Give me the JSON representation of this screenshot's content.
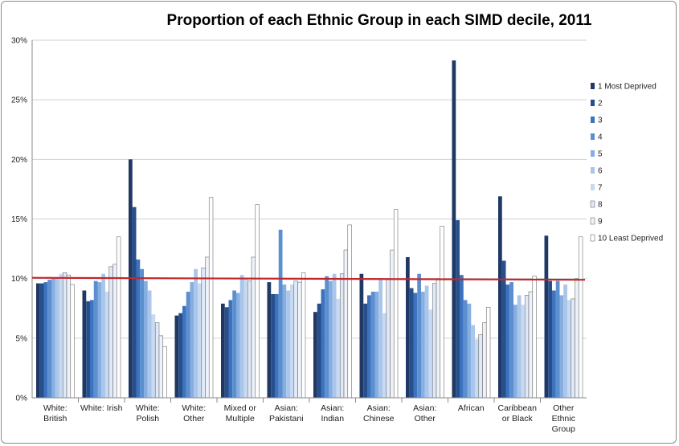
{
  "chart_data": {
    "type": "bar",
    "title": "Proportion of each Ethnic Group in each SIMD decile, 2011",
    "xlabel": "",
    "ylabel": "",
    "ylim": [
      0,
      30
    ],
    "yticks": [
      "0%",
      "5%",
      "10%",
      "15%",
      "20%",
      "25%",
      "30%"
    ],
    "grid": true,
    "legend_position": "right",
    "reference_line": {
      "value": 10,
      "color": "#c0272d"
    },
    "categories": [
      [
        "White:",
        "British"
      ],
      [
        "White: Irish"
      ],
      [
        "White:",
        "Polish"
      ],
      [
        "White:",
        "Other"
      ],
      [
        "Mixed or",
        "Multiple"
      ],
      [
        "Asian:",
        "Pakistani"
      ],
      [
        "Asian:",
        "Indian"
      ],
      [
        "Asian:",
        "Chinese"
      ],
      [
        "Asian:",
        "Other"
      ],
      [
        "African"
      ],
      [
        "Caribbean",
        "or Black"
      ],
      [
        "Other",
        "Ethnic",
        "Group"
      ]
    ],
    "series": [
      {
        "name": "1 Most Deprived",
        "color": "#1f3864",
        "values": [
          9.6,
          9.0,
          20.0,
          6.9,
          7.9,
          9.7,
          7.2,
          10.4,
          11.8,
          28.3,
          16.9,
          13.6
        ]
      },
      {
        "name": "2",
        "color": "#264f8c",
        "values": [
          9.6,
          8.1,
          16.0,
          7.1,
          7.6,
          8.7,
          7.9,
          7.9,
          9.2,
          14.9,
          11.5,
          9.8
        ]
      },
      {
        "name": "3",
        "color": "#3d72bd",
        "values": [
          9.7,
          8.2,
          11.6,
          7.7,
          8.2,
          8.7,
          9.1,
          8.6,
          8.8,
          10.3,
          9.5,
          9.0
        ]
      },
      {
        "name": "4",
        "color": "#5b8fd0",
        "values": [
          9.9,
          9.8,
          10.8,
          8.9,
          9.0,
          14.1,
          10.2,
          8.9,
          10.4,
          8.2,
          9.7,
          9.8
        ]
      },
      {
        "name": "5",
        "color": "#86aee0",
        "values": [
          10.0,
          9.7,
          9.8,
          9.7,
          8.8,
          9.5,
          9.8,
          8.9,
          8.9,
          7.9,
          7.8,
          8.6
        ]
      },
      {
        "name": "6",
        "color": "#aac6ea",
        "values": [
          10.1,
          10.4,
          9.0,
          10.8,
          10.3,
          9.0,
          10.4,
          9.9,
          9.4,
          6.1,
          8.6,
          9.5
        ]
      },
      {
        "name": "7",
        "color": "#c8daf2",
        "values": [
          10.4,
          8.9,
          7.0,
          9.6,
          10.0,
          9.5,
          8.3,
          7.1,
          7.4,
          4.9,
          7.8,
          8.2
        ]
      },
      {
        "name": "8",
        "color": "#dfe9f7",
        "values": [
          10.5,
          11.0,
          6.3,
          10.9,
          9.8,
          9.8,
          10.4,
          10.0,
          9.6,
          5.3,
          8.6,
          8.3
        ]
      },
      {
        "name": "9",
        "color": "#eef3fa",
        "values": [
          10.3,
          11.2,
          5.2,
          11.8,
          11.8,
          9.7,
          12.4,
          12.4,
          10.0,
          6.3,
          8.9,
          10.0
        ]
      },
      {
        "name": "10 Least Deprived",
        "color": "#ffffff",
        "values": [
          9.5,
          13.5,
          4.3,
          16.8,
          16.2,
          10.5,
          14.5,
          15.8,
          14.4,
          7.6,
          10.2,
          13.5
        ]
      }
    ]
  }
}
